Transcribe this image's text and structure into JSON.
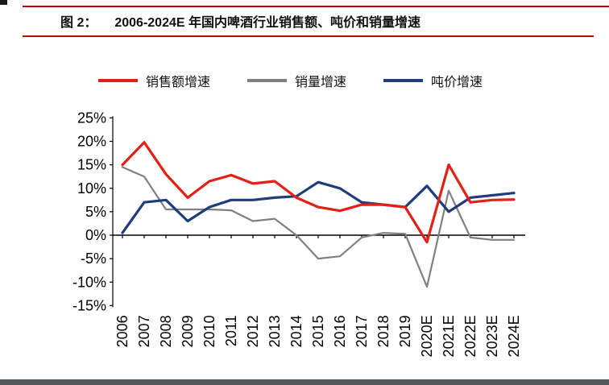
{
  "page": {
    "footer_bar_color": "#55565a",
    "corner_mark_color": "#1a1a1a"
  },
  "figure": {
    "label": "图 2：",
    "title": "2006-2024E 年国内啤酒行业销售额、吨价和销量增速",
    "rule_color": "#c70000"
  },
  "legend": [
    {
      "label": "销售额增速",
      "color": "#e32017"
    },
    {
      "label": "销量增速",
      "color": "#808080"
    },
    {
      "label": "吨价增速",
      "color": "#1f3d7a"
    }
  ],
  "chart_data": {
    "type": "line",
    "title": "2006-2024E 年国内啤酒行业销售额、吨价和销量增速",
    "xlabel": "",
    "ylabel": "",
    "ylim": [
      -15,
      25
    ],
    "grid": false,
    "legend_position": "top",
    "categories": [
      "2006",
      "2007",
      "2008",
      "2009",
      "2010",
      "2011",
      "2012",
      "2013",
      "2014",
      "2015",
      "2016",
      "2017",
      "2018",
      "2019",
      "2020E",
      "2021E",
      "2022E",
      "2023E",
      "2024E"
    ],
    "ytick_values": [
      25,
      20,
      15,
      10,
      5,
      0,
      -5,
      -10,
      -15
    ],
    "ytick_labels": [
      "25%",
      "20%",
      "15%",
      "10%",
      "5%",
      "0%",
      "-5%",
      "-10%",
      "-15%"
    ],
    "series": [
      {
        "name": "销售额增速",
        "color": "#e32017",
        "stroke_width": 3.2,
        "values": [
          15,
          19.8,
          13,
          8,
          11.5,
          12.8,
          11,
          11.5,
          8,
          6,
          5.2,
          6.5,
          6.5,
          6,
          -1.5,
          15,
          7,
          7.5,
          7.6
        ]
      },
      {
        "name": "销量增速",
        "color": "#808080",
        "stroke_width": 2.2,
        "values": [
          14.5,
          12.5,
          5.5,
          5.5,
          5.5,
          5.3,
          3,
          3.5,
          0,
          -5,
          -4.5,
          -0.5,
          0.5,
          0.3,
          -11,
          9.5,
          -0.5,
          -1,
          -1
        ]
      },
      {
        "name": "吨价增速",
        "color": "#1f3d7a",
        "stroke_width": 3.2,
        "values": [
          0.5,
          7,
          7.5,
          3,
          6,
          7.5,
          7.5,
          8,
          8.3,
          11.3,
          10,
          7,
          6.5,
          6,
          10.5,
          5,
          8,
          8.5,
          9
        ]
      }
    ]
  }
}
